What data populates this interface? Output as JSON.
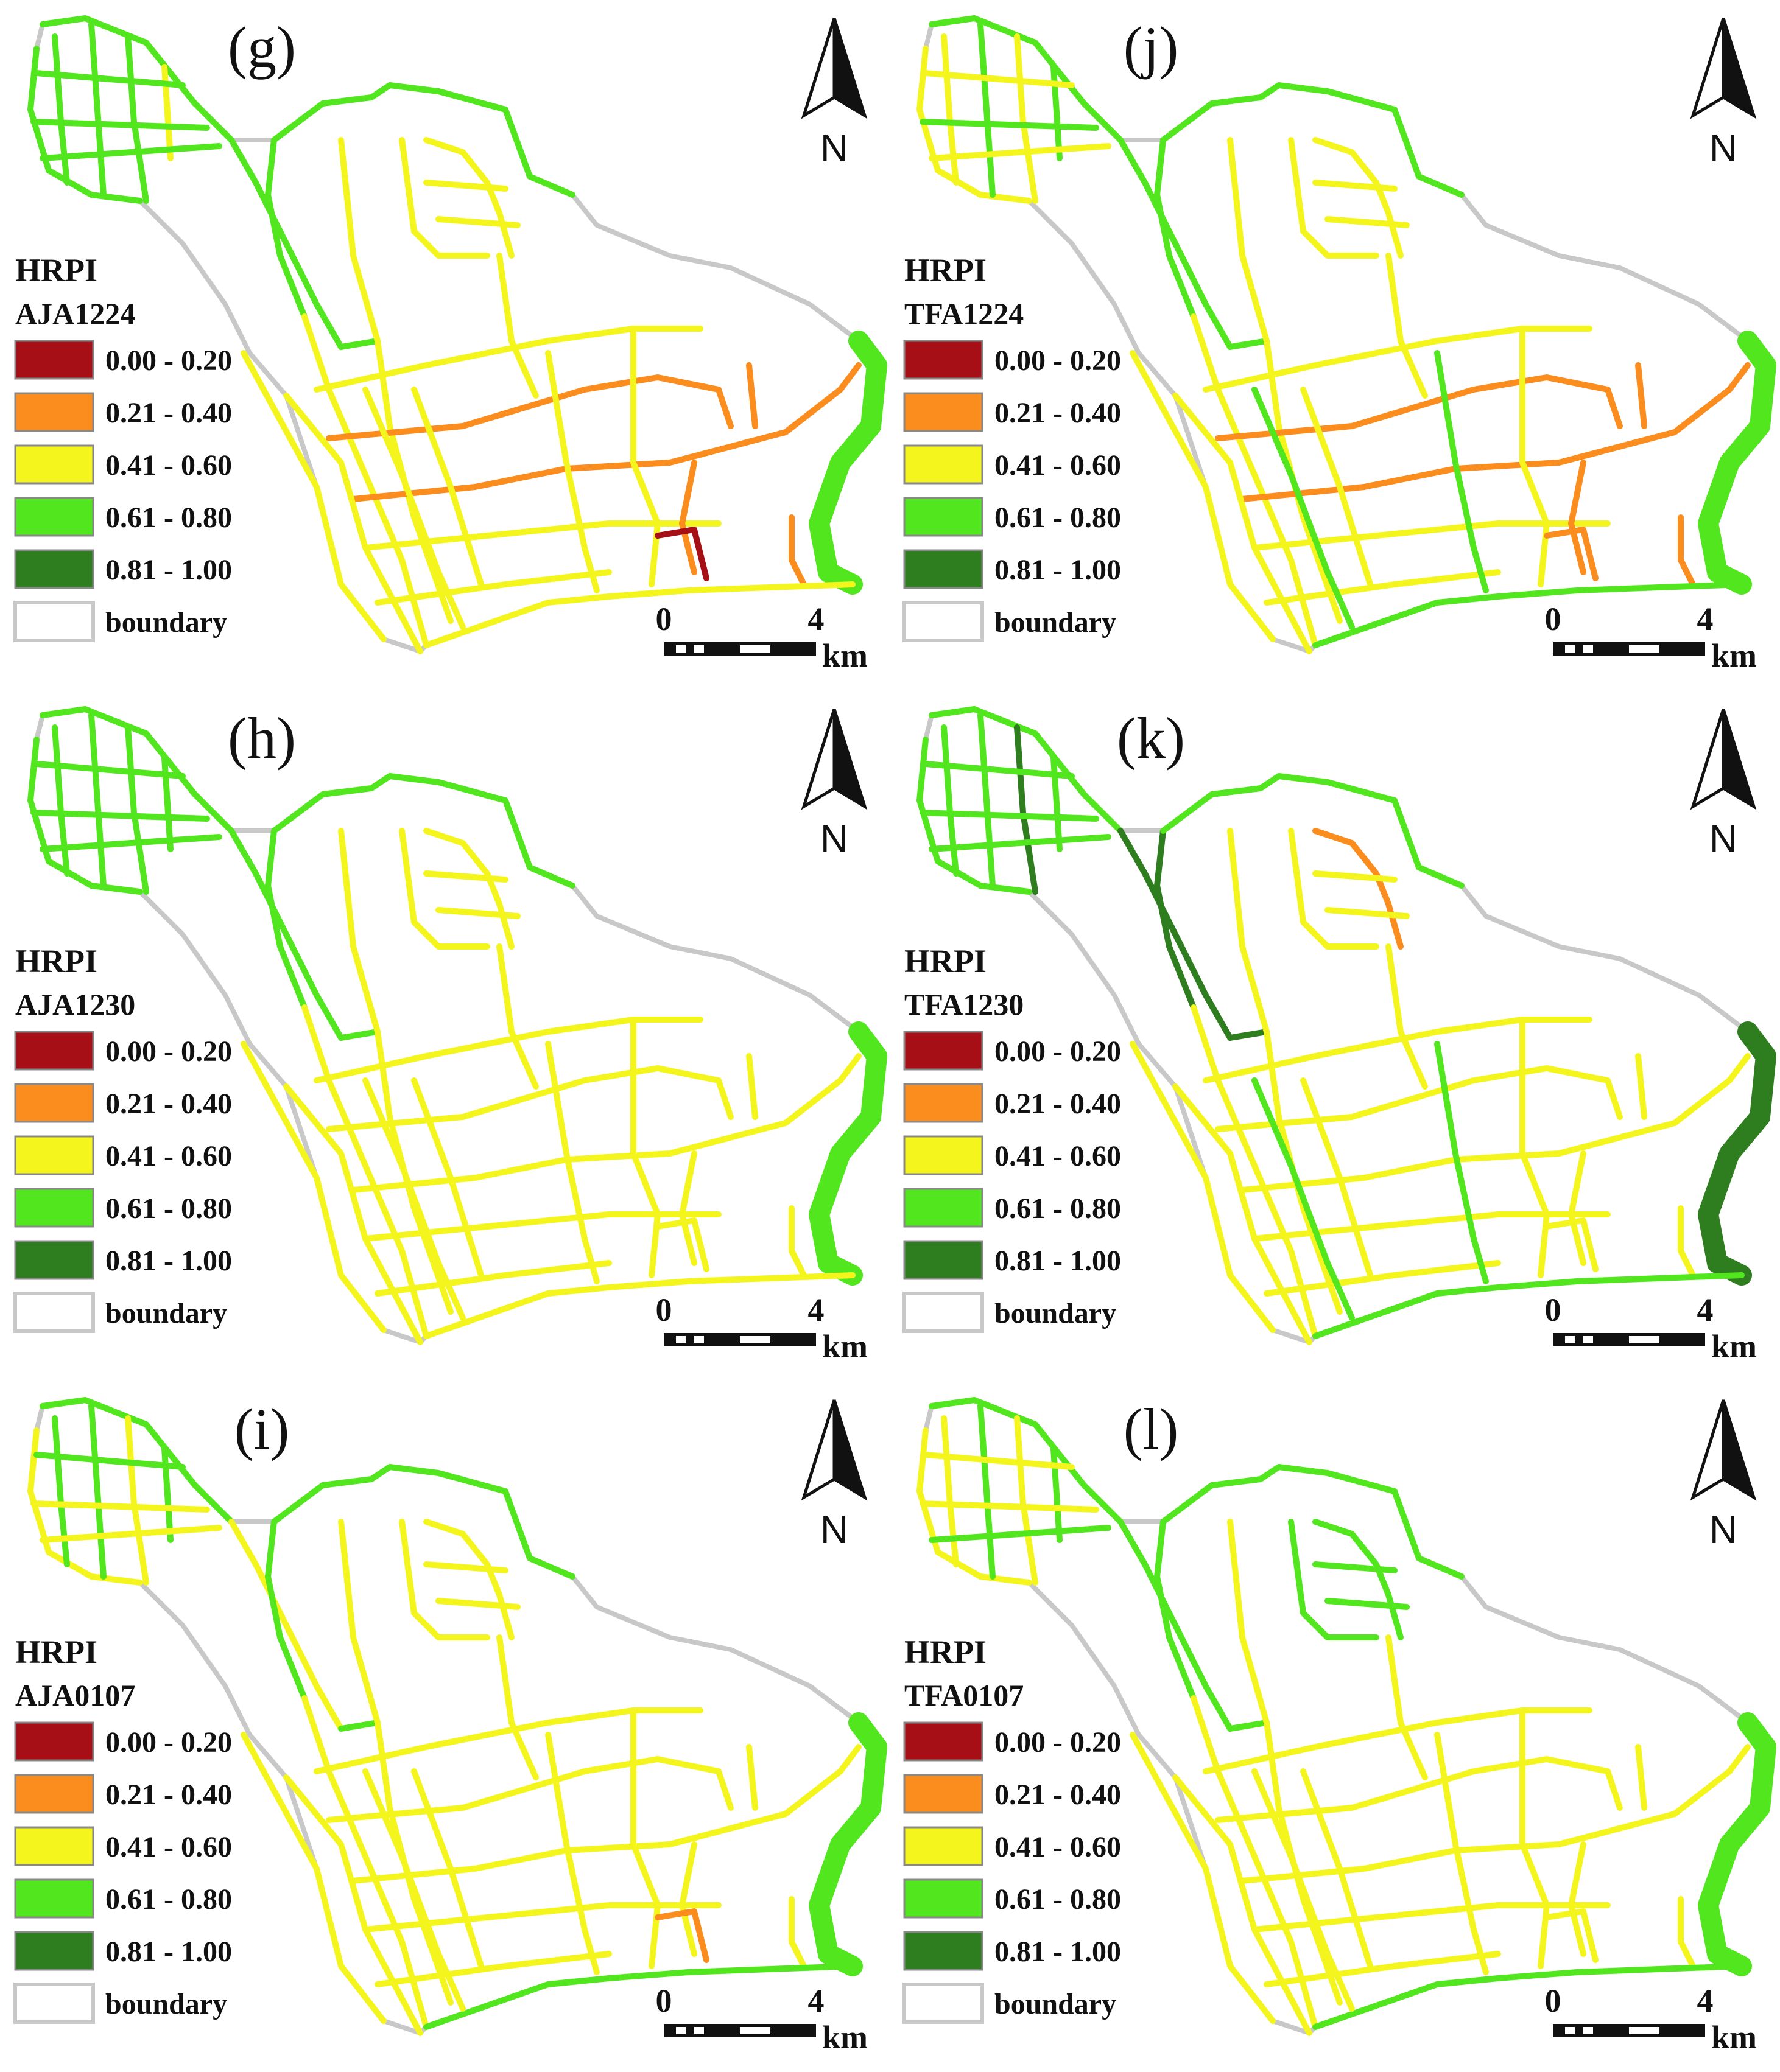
{
  "figure": {
    "panels": [
      {
        "id": "g",
        "label": "(g)",
        "legend_title": "HRPI",
        "legend_subtitle": "AJA1224",
        "variant": "aja1224"
      },
      {
        "id": "j",
        "label": "(j)",
        "legend_title": "HRPI",
        "legend_subtitle": "TFA1224",
        "variant": "tfa1224"
      },
      {
        "id": "h",
        "label": "(h)",
        "legend_title": "HRPI",
        "legend_subtitle": "AJA1230",
        "variant": "aja1230"
      },
      {
        "id": "k",
        "label": "(k)",
        "legend_title": "HRPI",
        "legend_subtitle": "TFA1230",
        "variant": "tfa1230"
      },
      {
        "id": "i",
        "label": "(i)",
        "legend_title": "HRPI",
        "legend_subtitle": "AJA0107",
        "variant": "aja0107"
      },
      {
        "id": "l",
        "label": "(l)",
        "legend_title": "HRPI",
        "legend_subtitle": "TFA0107",
        "variant": "tfa0107"
      }
    ],
    "legend_classes": [
      {
        "range": "0.00 - 0.20",
        "color": "#a50f15"
      },
      {
        "range": "0.21 - 0.40",
        "color": "#fb8c1e"
      },
      {
        "range": "0.41 - 0.60",
        "color": "#f5f51e"
      },
      {
        "range": "0.61 - 0.80",
        "color": "#52e61e"
      },
      {
        "range": "0.81 - 1.00",
        "color": "#2e7d1e"
      }
    ],
    "boundary": {
      "label": "boundary",
      "color": "#c8c8c8"
    },
    "north_arrow": {
      "label": "N",
      "icon": "north-arrow-icon"
    },
    "scale_bar": {
      "start": "0",
      "end": "4",
      "unit": "km"
    }
  }
}
